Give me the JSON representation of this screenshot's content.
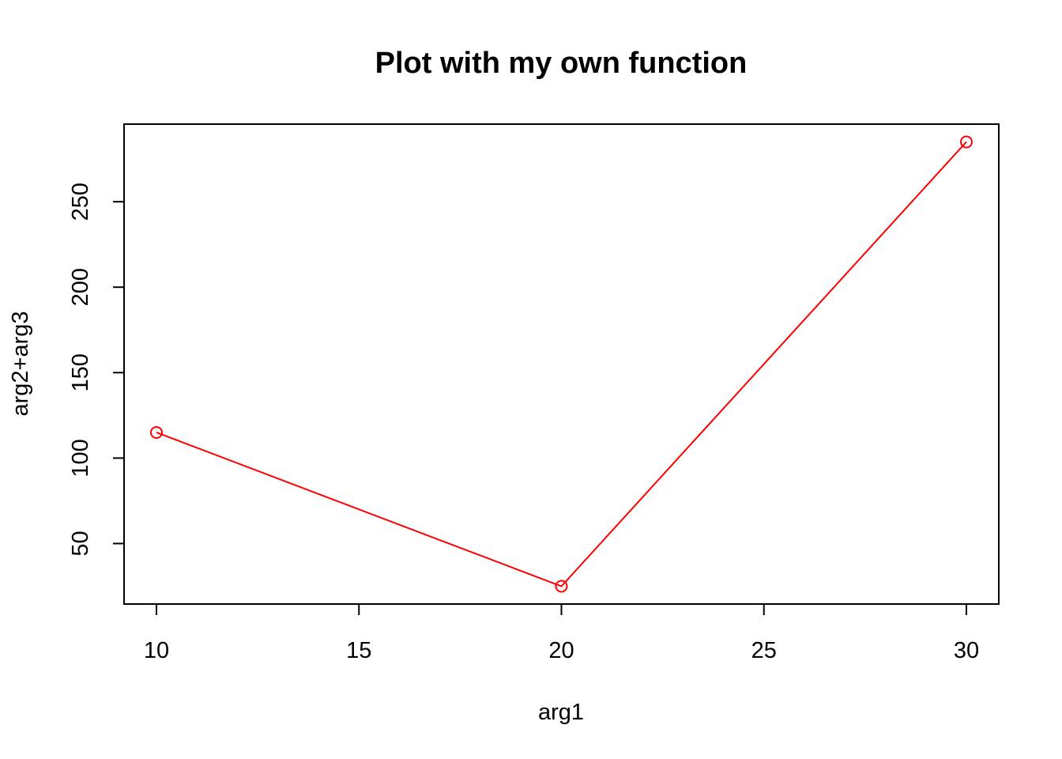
{
  "chart_data": {
    "type": "line",
    "title": "Plot with my own function",
    "xlabel": "arg1",
    "ylabel": "arg2+arg3",
    "x": [
      10,
      20,
      30
    ],
    "series": [
      {
        "values": [
          115,
          25,
          285
        ],
        "color": "#ff0000"
      }
    ],
    "xlim": [
      9.2,
      30.8
    ],
    "ylim": [
      14.6,
      295.4
    ],
    "xticks": [
      10,
      15,
      20,
      25,
      30
    ],
    "yticks": [
      50,
      100,
      150,
      200,
      250
    ],
    "grid": false,
    "markers": "open-circle",
    "legend": "none"
  }
}
